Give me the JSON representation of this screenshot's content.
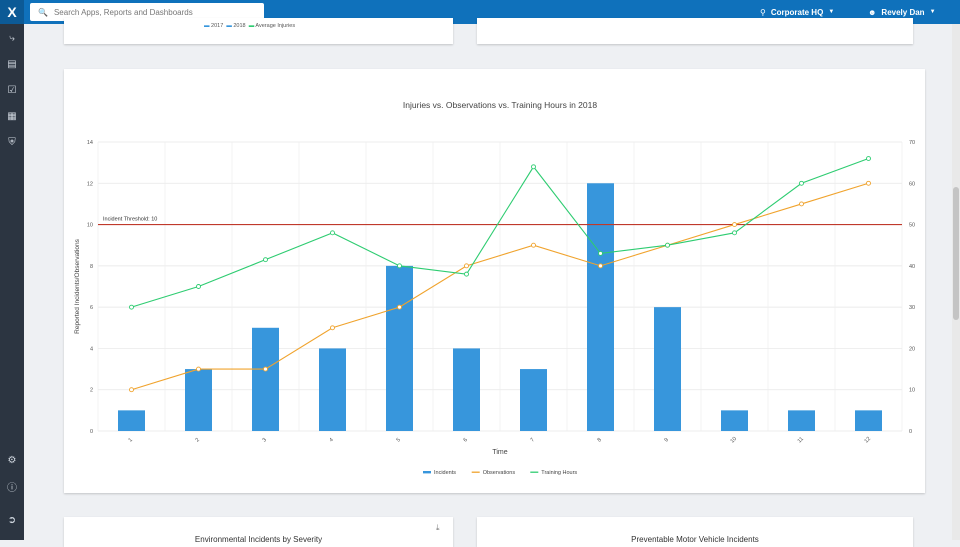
{
  "topbar": {
    "logo": "X",
    "search_placeholder": "Search Apps, Reports and Dashboards",
    "location": "Corporate HQ",
    "user": "Revely Dan"
  },
  "sidebar": {
    "icons": [
      "workflow-icon",
      "report-icon",
      "checklist-icon",
      "calendar-icon",
      "shield-icon",
      "settings-icon",
      "help-icon",
      "logout-icon"
    ]
  },
  "top_card_legend": [
    "2017",
    "2018",
    "Average Injuries"
  ],
  "bottom_cards": {
    "left_title": "Environmental Incidents by Severity",
    "right_title": "Preventable Motor Vehicle Incidents"
  },
  "chart_data": {
    "type": "bar",
    "title": "Injuries vs. Observations vs. Training Hours in 2018",
    "xlabel": "Time",
    "ylabel": "Reported Incidents/Observations",
    "categories": [
      "1",
      "2",
      "3",
      "4",
      "5",
      "6",
      "7",
      "8",
      "9",
      "10",
      "11",
      "12"
    ],
    "ylim": [
      0,
      14
    ],
    "y_ticks": [
      "0",
      "2",
      "4",
      "6",
      "8",
      "10",
      "12",
      "14"
    ],
    "y2lim": [
      0,
      70
    ],
    "y2_ticks": [
      "0",
      "10",
      "20",
      "30",
      "40",
      "50",
      "60",
      "70"
    ],
    "threshold": {
      "label": "Incident Threshold: 10",
      "value": 10,
      "color": "#c0392b"
    },
    "series": [
      {
        "name": "Incidents",
        "kind": "bar",
        "axis": "left",
        "color": "#3796dc",
        "values": [
          1,
          3,
          5,
          4,
          8,
          4,
          3,
          12,
          6,
          1,
          1,
          1
        ]
      },
      {
        "name": "Observations",
        "kind": "line",
        "axis": "left",
        "color": "#f0a32d",
        "values": [
          2,
          3,
          3,
          5,
          6,
          8,
          9,
          8,
          9,
          10,
          11,
          12
        ]
      },
      {
        "name": "Training Hours",
        "kind": "line",
        "axis": "right",
        "color": "#2ecc71",
        "values": [
          30,
          35,
          41.5,
          48,
          40,
          38,
          64,
          43,
          45,
          48,
          60,
          66
        ]
      }
    ],
    "grid": true,
    "legend": "bottom-center"
  }
}
